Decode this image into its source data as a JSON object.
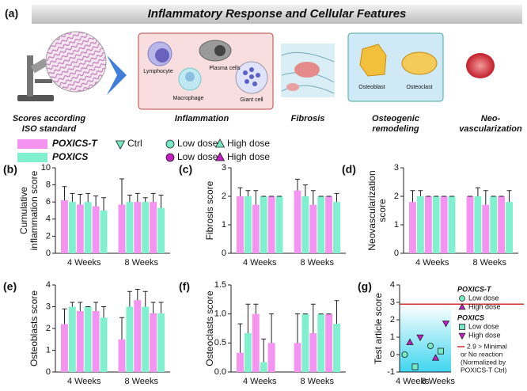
{
  "figure": {
    "panel_a": "(a)",
    "title": "Inflammatory Response and Cellular Features",
    "scores_label": [
      "Scores according",
      "ISO standard"
    ],
    "cells": [
      "Lymphocyte",
      "Plasma cells",
      "Macrophage",
      "Giant cell",
      "Osteoblast",
      "Osteoclast"
    ],
    "sections": [
      [
        "Inflammation"
      ],
      [
        "Fibrosis"
      ],
      [
        "Osteogenic",
        "remodeling"
      ],
      [
        "Neo-",
        "vascularization"
      ]
    ],
    "legend": [
      {
        "name": "POXICS-T",
        "color": "#f593f0",
        "doses": [
          {
            "name": "Ctrl",
            "marker": "tri-down",
            "color": "#77e8c4"
          },
          {
            "name": "Low dose",
            "marker": "circle",
            "color": "#77e8c4"
          },
          {
            "name": "High dose",
            "marker": "tri-up",
            "color": "#77e8c4"
          }
        ]
      },
      {
        "name": "POXICS",
        "color": "#80f0cf",
        "doses": [
          {
            "name": "Low dose",
            "marker": "circle",
            "color": "#c21fc0"
          },
          {
            "name": "High dose",
            "marker": "tri-up",
            "color": "#c21fc0"
          }
        ]
      }
    ]
  },
  "chart_data": [
    {
      "type": "bar",
      "panel": "(b)",
      "ylabel": [
        "Cumulative",
        "inflammation score"
      ],
      "categories": [
        "4 Weeks",
        "8 Weeks"
      ],
      "ylim": [
        0,
        10
      ],
      "yticks": [
        0,
        2,
        4,
        6,
        8,
        10
      ],
      "series": [
        {
          "color": "#f593f0",
          "values": [
            6.2,
            5.7
          ],
          "errors": [
            1.6,
            3.0
          ]
        },
        {
          "color": "#80f0cf",
          "values": [
            6.0,
            6.0
          ],
          "errors": [
            1.0,
            0.8
          ]
        },
        {
          "color": "#f593f0",
          "values": [
            5.7,
            6.0
          ],
          "errors": [
            1.2,
            1.0
          ]
        },
        {
          "color": "#80f0cf",
          "values": [
            6.0,
            6.0
          ],
          "errors": [
            1.0,
            0.5
          ]
        },
        {
          "color": "#f593f0",
          "values": [
            5.5,
            6.0
          ],
          "errors": [
            1.2,
            1.0
          ]
        },
        {
          "color": "#80f0cf",
          "values": [
            5.0,
            5.3
          ],
          "errors": [
            1.5,
            1.5
          ]
        }
      ]
    },
    {
      "type": "bar",
      "panel": "(c)",
      "ylabel": [
        "Fibrosis score"
      ],
      "categories": [
        "4 Weeks",
        "8 Weeks"
      ],
      "ylim": [
        0,
        3
      ],
      "yticks": [
        0,
        1,
        2,
        3
      ],
      "series": [
        {
          "color": "#f593f0",
          "values": [
            2.0,
            2.2
          ],
          "errors": [
            0.3,
            0.4
          ]
        },
        {
          "color": "#80f0cf",
          "values": [
            2.0,
            2.0
          ],
          "errors": [
            0.2,
            0.4
          ]
        },
        {
          "color": "#f593f0",
          "values": [
            1.7,
            1.7
          ],
          "errors": [
            0.5,
            0.5
          ]
        },
        {
          "color": "#80f0cf",
          "values": [
            2.0,
            2.0
          ],
          "errors": [
            0,
            0
          ]
        },
        {
          "color": "#f593f0",
          "values": [
            2.0,
            2.0
          ],
          "errors": [
            0,
            0
          ]
        },
        {
          "color": "#80f0cf",
          "values": [
            2.0,
            1.8
          ],
          "errors": [
            0,
            0.3
          ]
        }
      ]
    },
    {
      "type": "bar",
      "panel": "(d)",
      "ylabel": [
        "Neovascularization",
        "score"
      ],
      "categories": [
        "4 Weeks",
        "8 Weeks"
      ],
      "ylim": [
        0,
        3
      ],
      "yticks": [
        0,
        1,
        2,
        3
      ],
      "series": [
        {
          "color": "#f593f0",
          "values": [
            1.8,
            2.0
          ],
          "errors": [
            0.4,
            0
          ]
        },
        {
          "color": "#80f0cf",
          "values": [
            2.0,
            2.0
          ],
          "errors": [
            0.2,
            0.3
          ]
        },
        {
          "color": "#f593f0",
          "values": [
            2.0,
            1.7
          ],
          "errors": [
            0,
            0.5
          ]
        },
        {
          "color": "#80f0cf",
          "values": [
            2.0,
            2.0
          ],
          "errors": [
            0,
            0
          ]
        },
        {
          "color": "#f593f0",
          "values": [
            2.0,
            2.0
          ],
          "errors": [
            0,
            0
          ]
        },
        {
          "color": "#80f0cf",
          "values": [
            2.0,
            1.8
          ],
          "errors": [
            0,
            0.4
          ]
        }
      ]
    },
    {
      "type": "bar",
      "panel": "(e)",
      "ylabel": [
        "Osteoblasts score"
      ],
      "categories": [
        "4 Weeks",
        "8 Weeks"
      ],
      "ylim": [
        0,
        4
      ],
      "yticks": [
        0,
        1,
        2,
        3,
        4
      ],
      "series": [
        {
          "color": "#f593f0",
          "values": [
            2.2,
            1.5
          ],
          "errors": [
            0.7,
            1.0
          ]
        },
        {
          "color": "#80f0cf",
          "values": [
            3.0,
            3.0
          ],
          "errors": [
            0.2,
            0.7
          ]
        },
        {
          "color": "#f593f0",
          "values": [
            2.8,
            3.3
          ],
          "errors": [
            0.4,
            0.5
          ]
        },
        {
          "color": "#80f0cf",
          "values": [
            3.0,
            3.0
          ],
          "errors": [
            0,
            0.7
          ]
        },
        {
          "color": "#f593f0",
          "values": [
            2.8,
            2.7
          ],
          "errors": [
            0.4,
            0.5
          ]
        },
        {
          "color": "#80f0cf",
          "values": [
            2.5,
            2.7
          ],
          "errors": [
            0.5,
            0.5
          ]
        }
      ]
    },
    {
      "type": "bar",
      "panel": "(f)",
      "ylabel": [
        "Osteoclasts score"
      ],
      "categories": [
        "4 Weeks",
        "8 Weeks"
      ],
      "ylim": [
        0,
        1.5
      ],
      "yticks": [
        {
          "value": 0,
          "label": "0.0"
        },
        0.5,
        {
          "value": 1,
          "label": "1.0"
        },
        1.5
      ],
      "series": [
        {
          "color": "#f593f0",
          "values": [
            0.33,
            0.5
          ],
          "errors": [
            0.5,
            0.5
          ]
        },
        {
          "color": "#80f0cf",
          "values": [
            0.67,
            1.0
          ],
          "errors": [
            0.5,
            0
          ]
        },
        {
          "color": "#f593f0",
          "values": [
            1.0,
            0.67
          ],
          "errors": [
            0.17,
            0.5
          ]
        },
        {
          "color": "#80f0cf",
          "values": [
            0.17,
            1.0
          ],
          "errors": [
            0.4,
            0
          ]
        },
        {
          "color": "#f593f0",
          "values": [
            0.5,
            1.0
          ],
          "errors": [
            0.5,
            0
          ]
        },
        {
          "color": "#80f0cf",
          "values": [
            0,
            0.83
          ],
          "errors": [
            0,
            0.4
          ]
        }
      ]
    },
    {
      "type": "scatter",
      "panel": "(g)",
      "ylabel": [
        "Test article score"
      ],
      "categories": [
        "4 Weeks",
        "8 Weeks"
      ],
      "ylim": [
        -1,
        4
      ],
      "yticks": [
        -1,
        0,
        1,
        2,
        3,
        4
      ],
      "threshold": 2.9,
      "threshold_color": "#d0302a",
      "threshold_label": [
        "2.9 > Minimal",
        "or No reaction",
        "(Normalized by",
        "POXICS-T Ctrl)"
      ],
      "groups": [
        {
          "name": "POXICS-T",
          "series": [
            {
              "name": "Low dose",
              "marker": "circle",
              "color": "#77e8c4",
              "values": [
                0,
                0.5
              ]
            },
            {
              "name": "High dose",
              "marker": "tri-up",
              "color": "#c21fc0",
              "values": [
                0.7,
                -0.2
              ]
            }
          ]
        },
        {
          "name": "POXICS",
          "series": [
            {
              "name": "Low dose",
              "marker": "square",
              "color": "#77e8c4",
              "values": [
                -0.7,
                0.2
              ]
            },
            {
              "name": "High dose",
              "marker": "tri-down",
              "color": "#c21fc0",
              "values": [
                1.0,
                1.8
              ]
            }
          ]
        }
      ]
    }
  ]
}
